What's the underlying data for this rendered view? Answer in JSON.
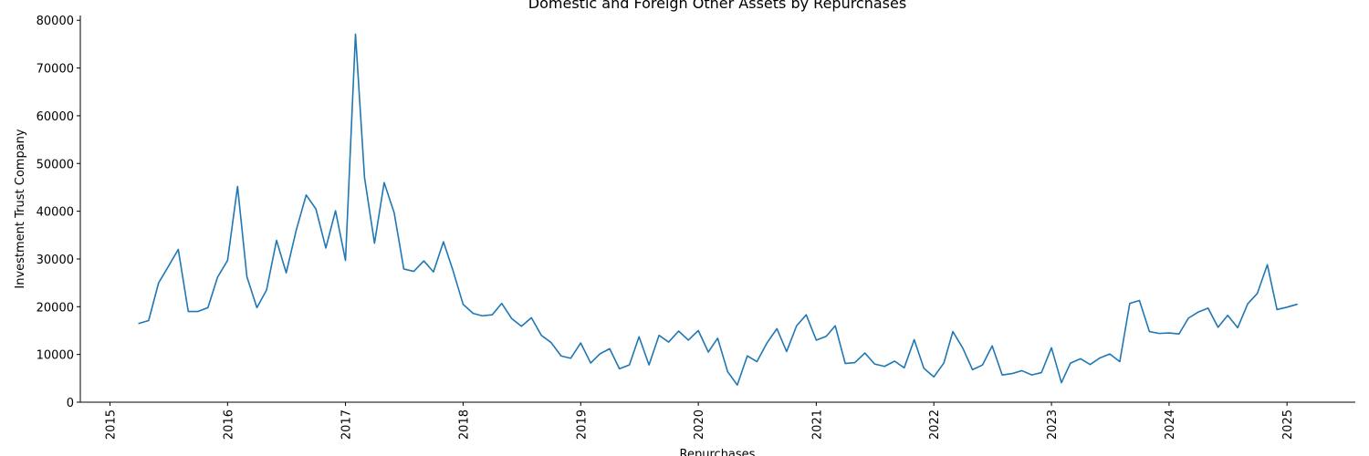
{
  "chart_data": {
    "type": "line",
    "title": "Domestic and Foreign Other Assets by Repurchases",
    "xlabel": "Repurchases",
    "ylabel": "Investment Trust Company",
    "xlim": [
      "2014-10-01",
      "2025-08-01"
    ],
    "ylim": [
      0,
      81000
    ],
    "yticks": [
      0,
      10000,
      20000,
      30000,
      40000,
      50000,
      60000,
      70000,
      80000
    ],
    "xticks": [
      "2015",
      "2016",
      "2017",
      "2018",
      "2019",
      "2020",
      "2021",
      "2022",
      "2023",
      "2024",
      "2025"
    ],
    "grid": false,
    "color": "#1f77b4",
    "series": [
      {
        "x": [
          "2015-04",
          "2015-05",
          "2015-06",
          "2015-07",
          "2015-08",
          "2015-09",
          "2015-10",
          "2015-11",
          "2015-12",
          "2016-01",
          "2016-02",
          "2016-03",
          "2016-04",
          "2016-05",
          "2016-06",
          "2016-07",
          "2016-08",
          "2016-09",
          "2016-10",
          "2016-11",
          "2016-12",
          "2017-01",
          "2017-02",
          "2017-03",
          "2017-04",
          "2017-05",
          "2017-06",
          "2017-07",
          "2017-08",
          "2017-09",
          "2017-10",
          "2017-11",
          "2017-12",
          "2018-01",
          "2018-02",
          "2018-03",
          "2018-04",
          "2018-05",
          "2018-06",
          "2018-07",
          "2018-08",
          "2018-09",
          "2018-10",
          "2018-11",
          "2018-12",
          "2019-01",
          "2019-02",
          "2019-03",
          "2019-04",
          "2019-05",
          "2019-06",
          "2019-07",
          "2019-08",
          "2019-09",
          "2019-10",
          "2019-11",
          "2019-12",
          "2020-01",
          "2020-02",
          "2020-03",
          "2020-04",
          "2020-05",
          "2020-06",
          "2020-07",
          "2020-08",
          "2020-09",
          "2020-10",
          "2020-11",
          "2020-12",
          "2021-01",
          "2021-02",
          "2021-03",
          "2021-04",
          "2021-05",
          "2021-06",
          "2021-07",
          "2021-08",
          "2021-09",
          "2021-10",
          "2021-11",
          "2021-12",
          "2022-01",
          "2022-02",
          "2022-03",
          "2022-04",
          "2022-05",
          "2022-06",
          "2022-07",
          "2022-08",
          "2022-09",
          "2022-10",
          "2022-11",
          "2022-12",
          "2023-01",
          "2023-02",
          "2023-03",
          "2023-04",
          "2023-05",
          "2023-06",
          "2023-07",
          "2023-08",
          "2023-09",
          "2023-10",
          "2023-11",
          "2023-12",
          "2024-01",
          "2024-02",
          "2024-03",
          "2024-04",
          "2024-05",
          "2024-06",
          "2024-07",
          "2024-08",
          "2024-09",
          "2024-10",
          "2024-11",
          "2024-12",
          "2025-01",
          "2025-02"
        ],
        "y": [
          16500,
          17100,
          25000,
          28400,
          32000,
          19000,
          19000,
          19800,
          26200,
          29700,
          45200,
          26300,
          19800,
          23500,
          33900,
          27100,
          36000,
          43400,
          40500,
          32300,
          40100,
          29700,
          77100,
          47100,
          33300,
          46000,
          39700,
          27900,
          27400,
          29600,
          27300,
          33600,
          27500,
          20500,
          18600,
          18100,
          18300,
          20700,
          17500,
          15900,
          17700,
          14000,
          12500,
          9700,
          9200,
          12400,
          8200,
          10100,
          11200,
          7000,
          7800,
          13700,
          7800,
          14000,
          12600,
          14900,
          13000,
          15000,
          10500,
          13400,
          6400,
          3600,
          9700,
          8500,
          12400,
          15400,
          10600,
          16000,
          18300,
          13000,
          13800,
          16000,
          8100,
          8300,
          10300,
          8000,
          7500,
          8600,
          7200,
          13100,
          7100,
          5300,
          8200,
          14800,
          11300,
          6800,
          7800,
          11800,
          5700,
          6000,
          6600,
          5700,
          6200,
          11400,
          4100,
          8200,
          9100,
          7900,
          9300,
          10100,
          8500,
          20700,
          21300,
          14800,
          14400,
          14500,
          14300,
          17600,
          18900,
          19700,
          15700,
          18200,
          15600,
          20600,
          22800,
          28800,
          19400,
          19900,
          20500
        ]
      }
    ]
  }
}
